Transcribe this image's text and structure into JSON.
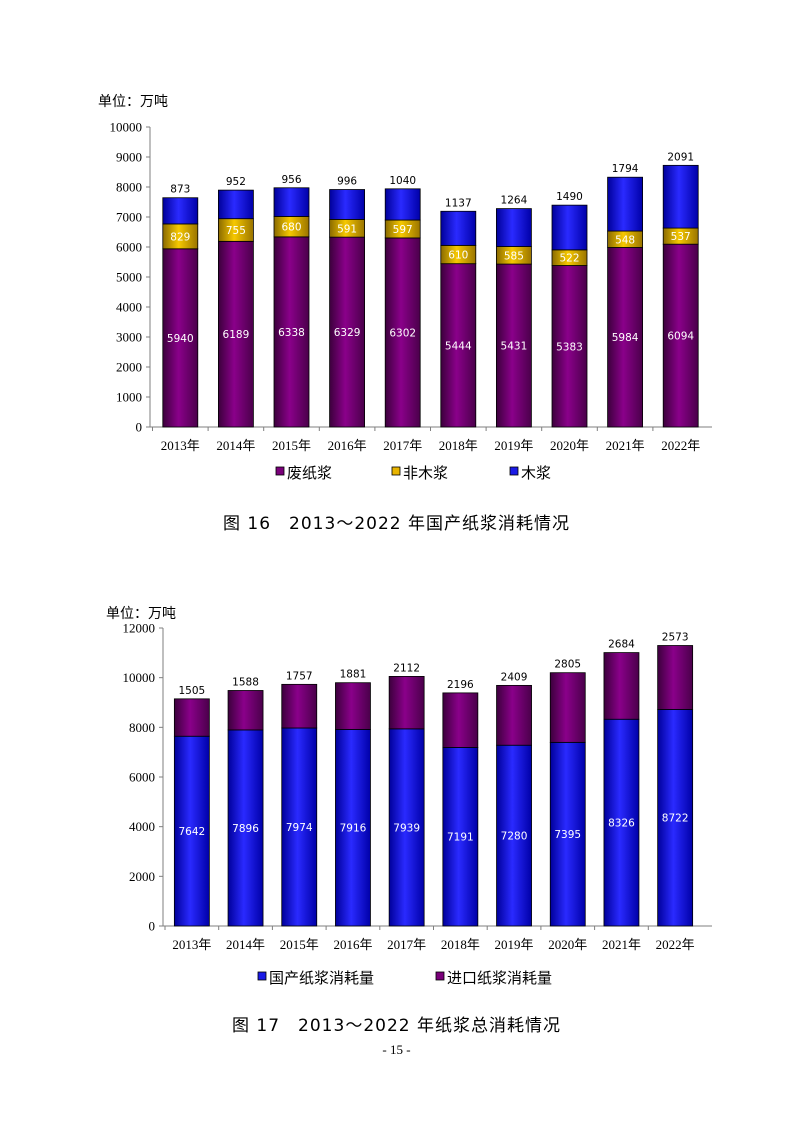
{
  "colors": {
    "waste_paper": "#7a007a",
    "non_wood": "#e8b400",
    "wood": "#1a1ae6",
    "domestic": "#1a1ae6",
    "imported": "#7a007a"
  },
  "chart_data": [
    {
      "type": "bar",
      "stacked": true,
      "unit_label": "单位：万吨",
      "categories": [
        "2013年",
        "2014年",
        "2015年",
        "2016年",
        "2017年",
        "2018年",
        "2019年",
        "2020年",
        "2021年",
        "2022年"
      ],
      "series": [
        {
          "name": "废纸浆",
          "color_key": "waste_paper",
          "values": [
            5940,
            6189,
            6338,
            6329,
            6302,
            5444,
            5431,
            5383,
            5984,
            6094
          ]
        },
        {
          "name": "非木浆",
          "color_key": "non_wood",
          "values": [
            829,
            755,
            680,
            591,
            597,
            610,
            585,
            522,
            548,
            537
          ]
        },
        {
          "name": "木浆",
          "color_key": "wood",
          "values": [
            873,
            952,
            956,
            996,
            1040,
            1137,
            1264,
            1490,
            1794,
            2091
          ]
        }
      ],
      "ylim": [
        0,
        10000
      ],
      "yticks": [
        0,
        1000,
        2000,
        3000,
        4000,
        5000,
        6000,
        7000,
        8000,
        9000,
        10000
      ],
      "legend_position": "bottom",
      "caption": "图 16　2013～2022 年国产纸浆消耗情况"
    },
    {
      "type": "bar",
      "stacked": true,
      "unit_label": "单位：万吨",
      "categories": [
        "2013年",
        "2014年",
        "2015年",
        "2016年",
        "2017年",
        "2018年",
        "2019年",
        "2020年",
        "2021年",
        "2022年"
      ],
      "series": [
        {
          "name": "国产纸浆消耗量",
          "color_key": "domestic",
          "values": [
            7642,
            7896,
            7974,
            7916,
            7939,
            7191,
            7280,
            7395,
            8326,
            8722
          ]
        },
        {
          "name": "进口纸浆消耗量",
          "color_key": "imported",
          "values": [
            1505,
            1588,
            1757,
            1881,
            2112,
            2196,
            2409,
            2805,
            2684,
            2573
          ]
        }
      ],
      "ylim": [
        0,
        12000
      ],
      "yticks": [
        0,
        2000,
        4000,
        6000,
        8000,
        10000,
        12000
      ],
      "legend_position": "bottom",
      "caption": "图 17　2013～2022 年纸浆总消耗情况"
    }
  ],
  "page_number": "- 15 -"
}
